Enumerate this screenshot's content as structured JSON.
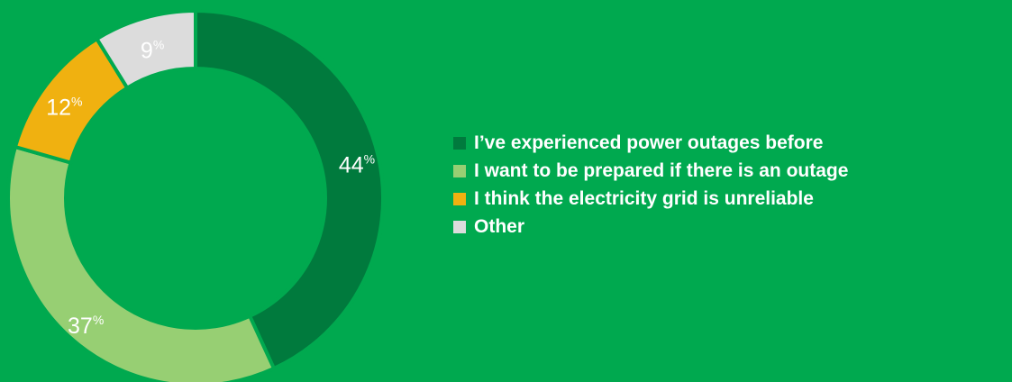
{
  "chart_data": {
    "type": "pie",
    "style": "donut",
    "categories": [
      "I’ve experienced power outages before",
      "I want to be prepared if there is an outage",
      "I think the electricity grid is unreliable",
      "Other"
    ],
    "values": [
      44,
      37,
      12,
      9
    ],
    "value_suffix": "%",
    "colors": [
      "#007a3d",
      "#97cf73",
      "#f0b110",
      "#dcdcdc"
    ],
    "background_color": "#00a94f",
    "legend_position": "right"
  }
}
